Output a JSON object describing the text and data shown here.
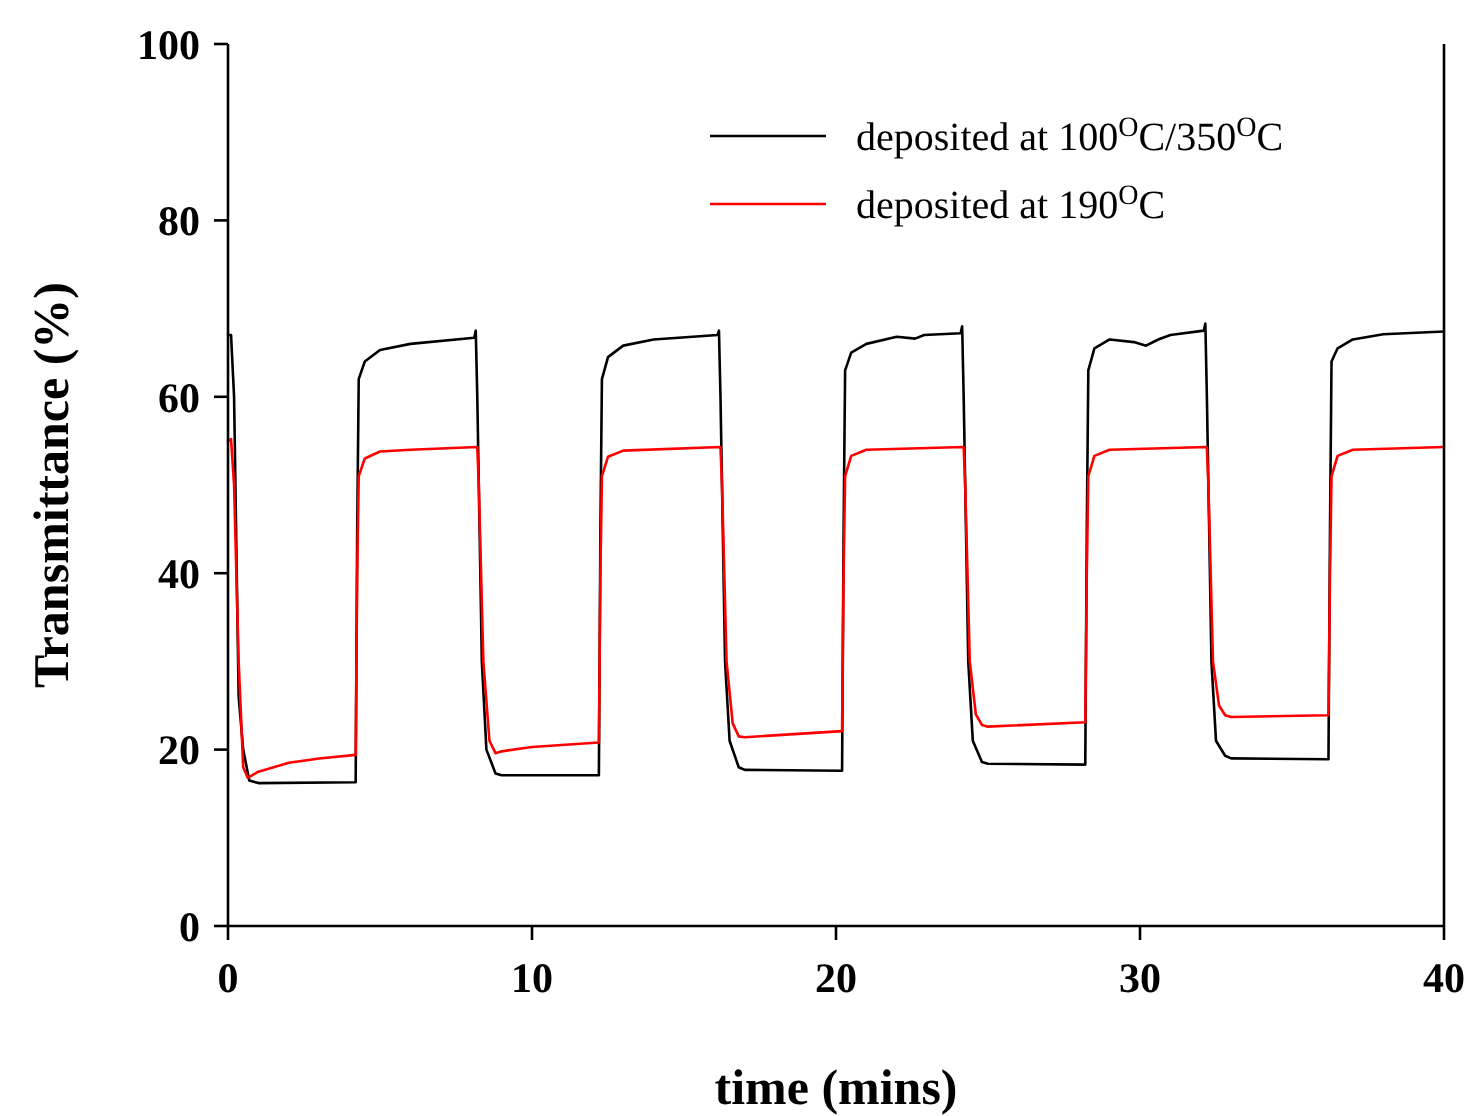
{
  "chart_data": {
    "type": "line",
    "xlabel": "time (mins)",
    "ylabel": "Transmittance (%)",
    "xlim": [
      0,
      40
    ],
    "xticks": [
      0,
      10,
      20,
      30,
      40
    ],
    "ylim": [
      0,
      100
    ],
    "yticks": [
      0,
      20,
      40,
      60,
      80,
      100
    ],
    "grid": false,
    "legend": "top right",
    "marker": "none",
    "line_style": "solid",
    "series": [
      {
        "name": "deposited at 100$^{O}$C/350$^{O}$C",
        "color": "#000000",
        "x": [
          0,
          0.1,
          0.2,
          0.35,
          0.5,
          0.7,
          1,
          4.2,
          4.25,
          4.3,
          4.5,
          5,
          6,
          8.1,
          8.15,
          8.2,
          8.35,
          8.5,
          8.8,
          9,
          12.2,
          12.25,
          12.3,
          12.5,
          13,
          14,
          16.1,
          16.15,
          16.2,
          16.35,
          16.5,
          16.8,
          17,
          20.2,
          20.25,
          20.3,
          20.5,
          21,
          22,
          22.6,
          22.9,
          24.1,
          24.15,
          24.2,
          24.35,
          24.5,
          24.8,
          25,
          28.2,
          28.25,
          28.3,
          28.5,
          29,
          29.8,
          30.2,
          30.6,
          31,
          32.1,
          32.15,
          32.2,
          32.35,
          32.5,
          32.8,
          33,
          36.2,
          36.25,
          36.3,
          36.5,
          37,
          38,
          40
        ],
        "values": [
          67,
          67,
          60,
          26,
          20,
          16.5,
          16.2,
          16.3,
          45,
          62,
          64,
          65.3,
          66,
          66.7,
          67.5,
          60,
          30,
          20,
          17.3,
          17.1,
          17.1,
          45,
          62,
          64.5,
          65.8,
          66.5,
          67,
          67.5,
          60,
          30,
          21,
          18,
          17.7,
          17.6,
          45,
          63,
          65,
          66,
          66.8,
          66.6,
          67,
          67.2,
          68,
          60,
          30,
          21,
          18.6,
          18.4,
          18.3,
          45,
          63,
          65.5,
          66.5,
          66.2,
          65.8,
          66.5,
          67,
          67.5,
          68.3,
          60,
          30,
          21,
          19.3,
          19,
          18.9,
          45,
          64,
          65.5,
          66.5,
          67.1,
          67.4
        ]
      },
      {
        "name": "deposited at 190$^{O}$C",
        "color": "#ff0000",
        "x": [
          0,
          0.1,
          0.2,
          0.35,
          0.5,
          0.65,
          1,
          2,
          3,
          4.2,
          4.25,
          4.3,
          4.5,
          5,
          6,
          8.2,
          8.25,
          8.4,
          8.6,
          8.8,
          9,
          10,
          12.2,
          12.25,
          12.3,
          12.5,
          13,
          16.2,
          16.25,
          16.4,
          16.6,
          16.8,
          17,
          20.2,
          20.25,
          20.3,
          20.5,
          21,
          24.2,
          24.25,
          24.4,
          24.6,
          24.8,
          25,
          28.2,
          28.25,
          28.3,
          28.5,
          29,
          32.2,
          32.25,
          32.4,
          32.6,
          32.8,
          33,
          36.2,
          36.25,
          36.3,
          36.5,
          37,
          40
        ],
        "values": [
          55,
          55.2,
          50,
          30,
          18,
          16.8,
          17.5,
          18.5,
          19,
          19.4,
          40,
          51,
          53,
          53.8,
          54,
          54.3,
          50,
          30,
          21,
          19.6,
          19.8,
          20.3,
          20.8,
          40,
          51,
          53.2,
          53.9,
          54.3,
          50,
          30,
          23,
          21.5,
          21.4,
          22.1,
          40,
          51,
          53.3,
          54,
          54.3,
          50,
          30,
          24,
          22.8,
          22.6,
          23.1,
          40,
          51,
          53.3,
          54,
          54.3,
          50,
          30,
          25,
          23.9,
          23.7,
          23.9,
          40,
          51,
          53.3,
          54,
          54.3
        ]
      }
    ]
  }
}
